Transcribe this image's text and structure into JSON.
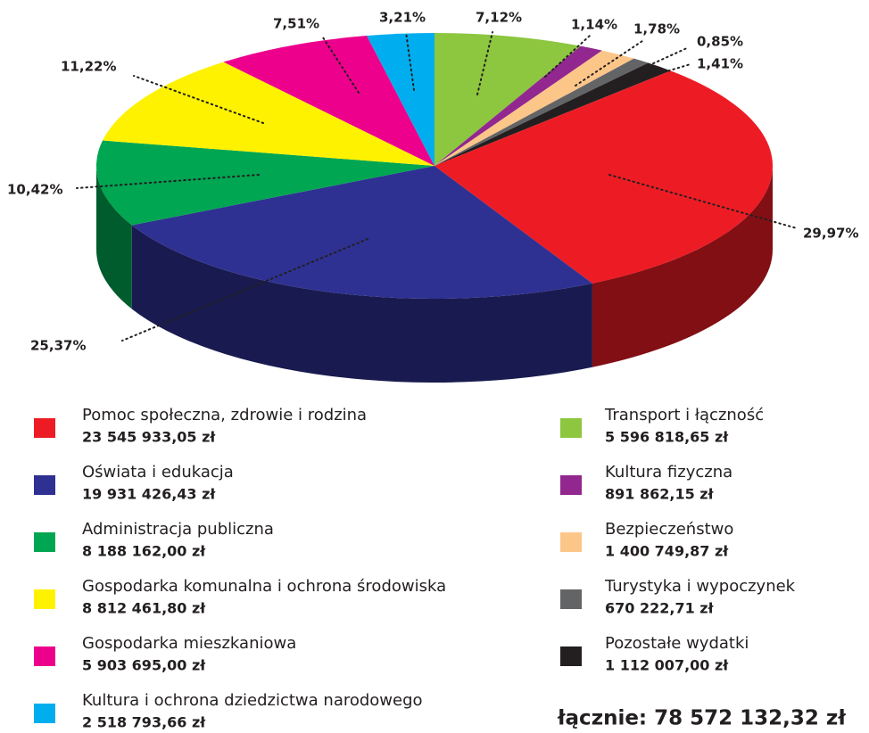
{
  "chart_data": {
    "type": "pie",
    "categories": [
      "Pomoc społeczna, zdrowie i rodzina",
      "Oświata i edukacja",
      "Administracja publiczna",
      "Gospodarka komunalna i ochrona środowiska",
      "Gospodarka mieszkaniowa",
      "Kultura i ochrona dziedzictwa narodowego",
      "Transport i łączność",
      "Kultura fizyczna",
      "Bezpieczeństwo",
      "Turystyka i wypoczynek",
      "Pozostałe wydatki"
    ],
    "values": [
      29.97,
      25.37,
      10.42,
      11.22,
      7.51,
      3.21,
      7.12,
      1.14,
      1.78,
      0.85,
      1.41
    ],
    "value_labels": [
      "29,97%",
      "25,37%",
      "10,42%",
      "11,22%",
      "7,51%",
      "3,21%",
      "7,12%",
      "1,14%",
      "1,78%",
      "0,85%",
      "1,41%"
    ],
    "amount_labels": [
      "23 545 933,05 zł",
      "19 931 426,43 zł",
      "8 188 162,00 zł",
      "8 812 461,80 zł",
      "5 903 695,00 zł",
      "2 518 793,66 zł",
      "5 596 818,65 zł",
      "891 862,15 zł",
      "1 400 749,87 zł",
      "670 222,71 zł",
      "1 112 007,00 zł"
    ],
    "colors": [
      "#ed1c24",
      "#2e3192",
      "#00a651",
      "#fff200",
      "#ec008c",
      "#00aeef",
      "#8dc63f",
      "#92278f",
      "#fdc689",
      "#636466",
      "#231f20"
    ],
    "total_label": "łącznie: 78 572 132,32 zł"
  }
}
